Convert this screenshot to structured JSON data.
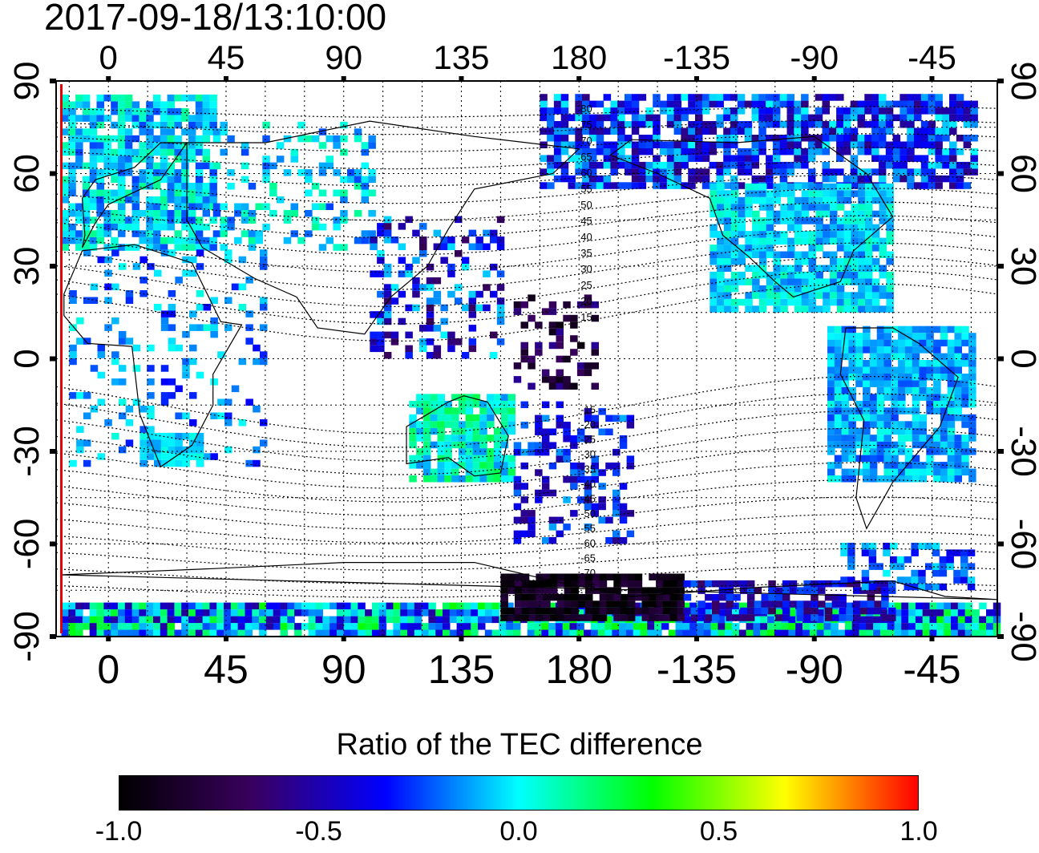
{
  "timestamp": "2017-09-18/13:10:00",
  "map": {
    "top_lon_labels": [
      "0",
      "45",
      "90",
      "135",
      "180",
      "-135",
      "-90",
      "-45"
    ],
    "bottom_lon_labels": [
      "0",
      "45",
      "90",
      "135",
      "180",
      "-135",
      "-90",
      "-45"
    ],
    "lon_values": [
      0,
      45,
      90,
      135,
      180,
      225,
      270,
      315
    ],
    "left_lat_labels": [
      "90",
      "60",
      "30",
      "0",
      "-30",
      "-60",
      "-90"
    ],
    "right_lat_labels": [
      "90",
      "60",
      "30",
      "0",
      "-30",
      "-60",
      "-90"
    ],
    "lat_values": [
      90,
      60,
      30,
      0,
      -30,
      -60,
      -90
    ],
    "lon_range": [
      -20,
      340
    ],
    "lat_range": [
      -90,
      90
    ],
    "grid": true,
    "marker_line_lon": -18,
    "marker_line_color": "#e00000",
    "contour_labels": [
      "80",
      "75",
      "70",
      "65",
      "60",
      "55",
      "50",
      "45",
      "40",
      "35",
      "30",
      "25",
      "20",
      "15",
      "-15",
      "-20",
      "-25",
      "-30",
      "-35",
      "-40",
      "-45",
      "-50",
      "-55",
      "-60",
      "-65",
      "-70",
      "-75"
    ]
  },
  "colorbar": {
    "title": "Ratio of the TEC difference",
    "min": -1.0,
    "max": 1.0,
    "tick_labels": [
      "-1.0",
      "-0.5",
      "0.0",
      "0.5",
      "1.0"
    ],
    "tick_values": [
      -1.0,
      -0.5,
      0.0,
      0.5,
      1.0
    ],
    "colors": [
      "#000000",
      "#3a0060",
      "#0000ff",
      "#00ffff",
      "#00ff00",
      "#ffff00",
      "#ff0000"
    ]
  }
}
